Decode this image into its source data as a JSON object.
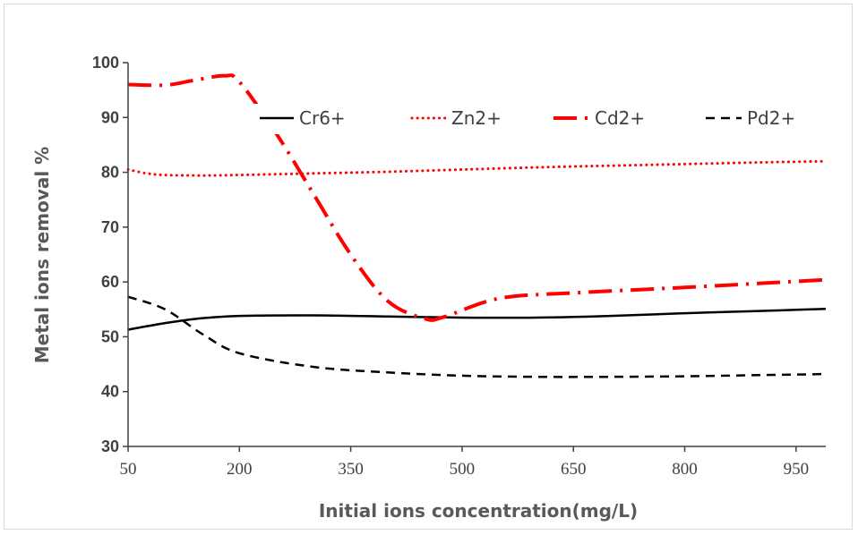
{
  "chart_data": {
    "type": "line",
    "title": "",
    "xlabel": "Initial ions concentration(mg/L)",
    "ylabel": "Metal ions removal %",
    "xlim": [
      50,
      990
    ],
    "ylim": [
      30,
      100
    ],
    "x_ticks": [
      "50",
      "200",
      "350",
      "500",
      "650",
      "800",
      "950"
    ],
    "y_ticks": [
      "30",
      "40",
      "50",
      "60",
      "70",
      "80",
      "90",
      "100"
    ],
    "legend_position": "top-right",
    "series": [
      {
        "name": "Cr6+",
        "color": "#000000",
        "dash": "solid",
        "x": [
          50,
          100,
          150,
          200,
          300,
          400,
          500,
          600,
          700,
          800,
          900,
          990
        ],
        "y": [
          51.3,
          52.5,
          53.4,
          53.8,
          53.9,
          53.7,
          53.5,
          53.5,
          53.8,
          54.3,
          54.7,
          55.1
        ]
      },
      {
        "name": "Zn2+",
        "color": "#ff0000",
        "dash": "dotted",
        "x": [
          50,
          75,
          100,
          150,
          200,
          300,
          400,
          500,
          600,
          700,
          800,
          900,
          990
        ],
        "y": [
          80.5,
          79.8,
          79.5,
          79.4,
          79.5,
          79.8,
          80.1,
          80.5,
          80.9,
          81.2,
          81.5,
          81.8,
          82.0
        ]
      },
      {
        "name": "Cd2+",
        "color": "#ff0000",
        "dash": "dashdot",
        "x": [
          50,
          100,
          140,
          180,
          200,
          250,
          300,
          350,
          400,
          450,
          475,
          550,
          650,
          800,
          990
        ],
        "y": [
          96.0,
          95.9,
          96.8,
          97.6,
          96.5,
          87.0,
          76.0,
          65.0,
          56.5,
          53.3,
          53.6,
          57.0,
          58.0,
          59.0,
          60.4
        ]
      },
      {
        "name": "Pd2+",
        "color": "#000000",
        "dash": "dashed",
        "x": [
          50,
          100,
          150,
          200,
          300,
          400,
          500,
          600,
          700,
          800,
          900,
          990
        ],
        "y": [
          57.3,
          55.0,
          50.5,
          47.0,
          44.5,
          43.5,
          42.9,
          42.7,
          42.7,
          42.8,
          43.0,
          43.2
        ]
      }
    ]
  }
}
